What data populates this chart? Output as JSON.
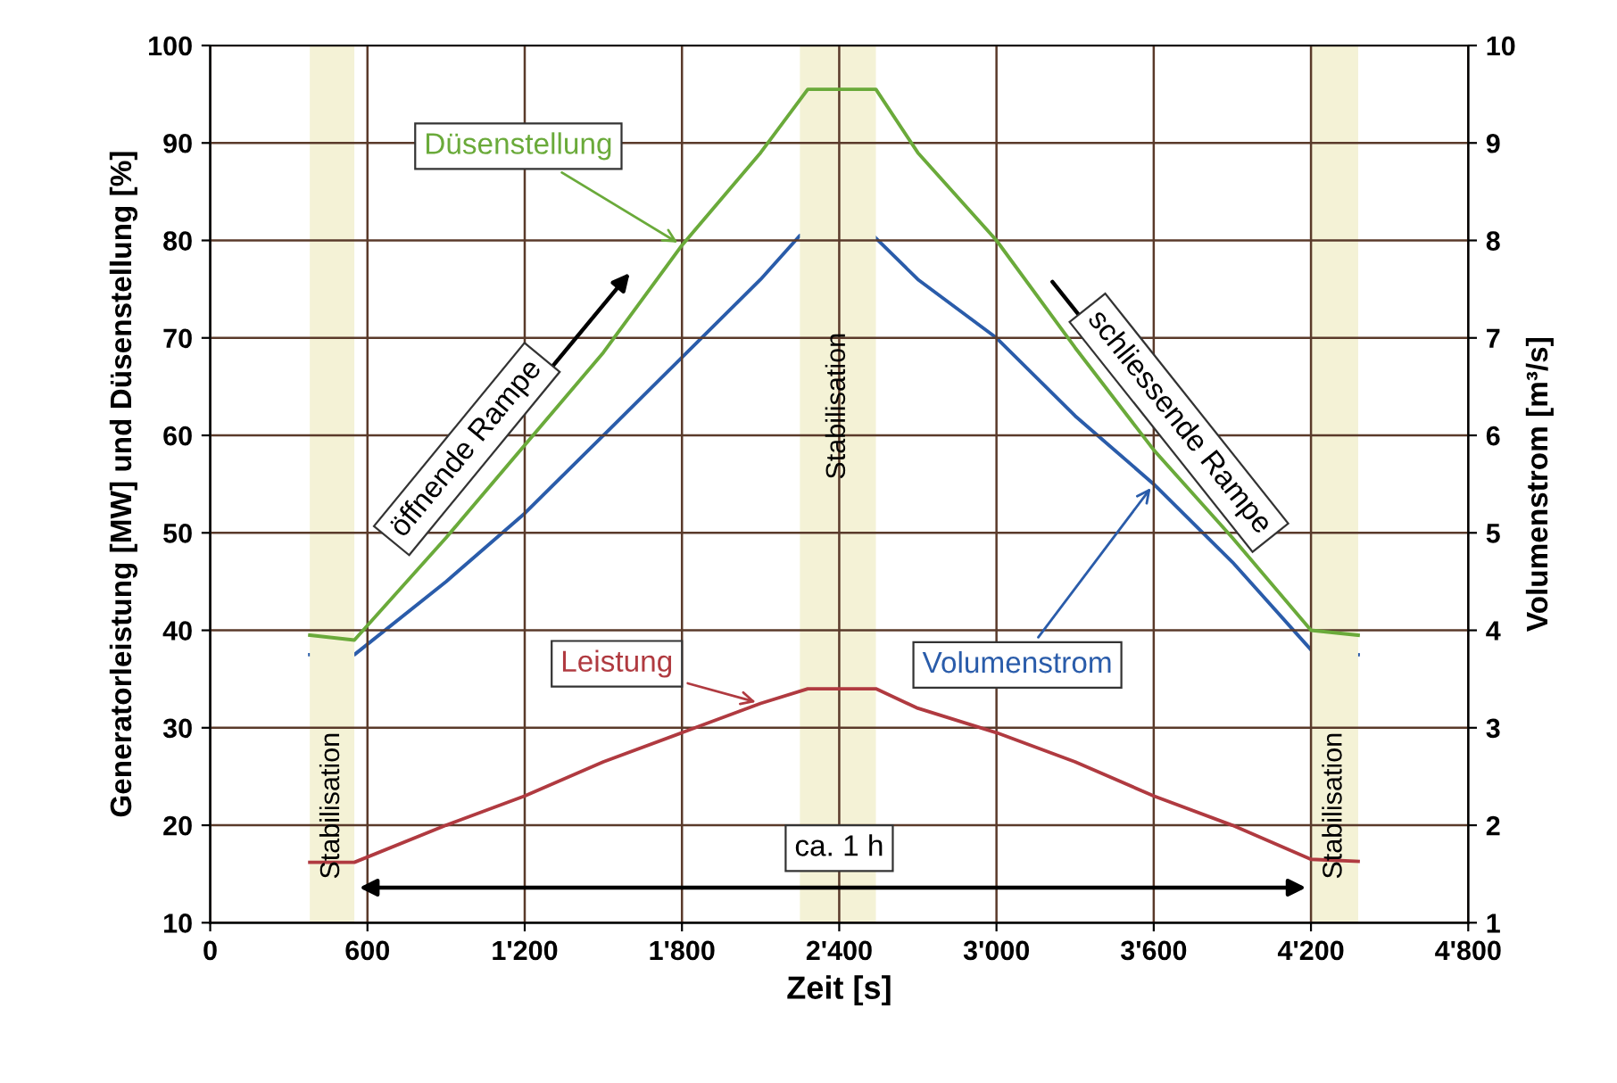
{
  "chart_data": {
    "type": "line",
    "xlabel": "Zeit [s]",
    "ylabel": "Generatorleistung [MW] und Düsenstellung [%]",
    "y2label": "Volumenstrom [m³/s]",
    "xlim": [
      0,
      4800
    ],
    "xticks": [
      0,
      600,
      {
        "value": 1200,
        "label": "1'200"
      },
      {
        "value": 1800,
        "label": "1'800"
      },
      {
        "value": 2400,
        "label": "2'400"
      },
      {
        "value": 3000,
        "label": "3'000"
      },
      {
        "value": 3600,
        "label": "3'600"
      },
      {
        "value": 4200,
        "label": "4'200"
      },
      {
        "value": 4800,
        "label": "4'800"
      }
    ],
    "ylim": [
      10,
      100
    ],
    "yticks": [
      10,
      20,
      30,
      40,
      50,
      60,
      70,
      80,
      90,
      100
    ],
    "y2lim": [
      1,
      10
    ],
    "y2ticks": [
      1,
      2,
      3,
      4,
      5,
      6,
      7,
      8,
      9,
      10
    ],
    "grid": true,
    "legend": false,
    "marker": "none",
    "line_style": "solid",
    "series": [
      {
        "color": "#6aaa3a",
        "x": [
          380,
          550,
          900,
          1200,
          1500,
          1800,
          2100,
          2280,
          2540,
          2700,
          3000,
          3300,
          3600,
          3900,
          4200,
          4380
        ],
        "values": [
          39.5,
          39,
          49.5,
          59,
          68.5,
          79.5,
          89,
          95.5,
          95.5,
          89,
          80,
          69,
          58.5,
          49.5,
          40,
          39.5
        ]
      },
      {
        "color": "#b03a40",
        "x": [
          380,
          550,
          900,
          1200,
          1500,
          1800,
          2100,
          2280,
          2540,
          2700,
          3000,
          3300,
          3600,
          3900,
          4200,
          4380
        ],
        "values": [
          16.2,
          16.2,
          20,
          23,
          26.5,
          29.5,
          32.5,
          34,
          34,
          32,
          29.5,
          26.5,
          23,
          20,
          16.5,
          16.3
        ]
      },
      {
        "color": "#2a5caa",
        "axis": "y2",
        "x": [
          380,
          550,
          900,
          1200,
          1500,
          1800,
          2100,
          2250,
          2530,
          2700,
          3000,
          3300,
          3600,
          3900,
          4200,
          4380
        ],
        "values": [
          3.75,
          3.75,
          4.5,
          5.2,
          6,
          6.8,
          7.6,
          8.05,
          8.05,
          7.6,
          7.0,
          6.2,
          5.5,
          4.7,
          3.8,
          3.75
        ]
      }
    ],
    "bands": [
      {
        "axis": "x",
        "from": 380,
        "to": 550,
        "label": "Stabilisation",
        "color": "#f4f2d6"
      },
      {
        "axis": "x",
        "from": 2250,
        "to": 2540,
        "label": "Stabilisation",
        "color": "#f4f2d6"
      },
      {
        "axis": "x",
        "from": 4200,
        "to": 4380,
        "label": "Stabilisation",
        "color": "#f4f2d6"
      }
    ],
    "annotations": [
      {
        "text": "Düsenstellung",
        "x": 1800,
        "y": 79.5
      },
      {
        "text": "Leistung",
        "x": 2100,
        "y": 32.5
      },
      {
        "text": "Volumenstrom",
        "x": 3600,
        "y": 55
      },
      "öffnende Rampe",
      "schliessende Rampe",
      "ca. 1 h"
    ]
  }
}
